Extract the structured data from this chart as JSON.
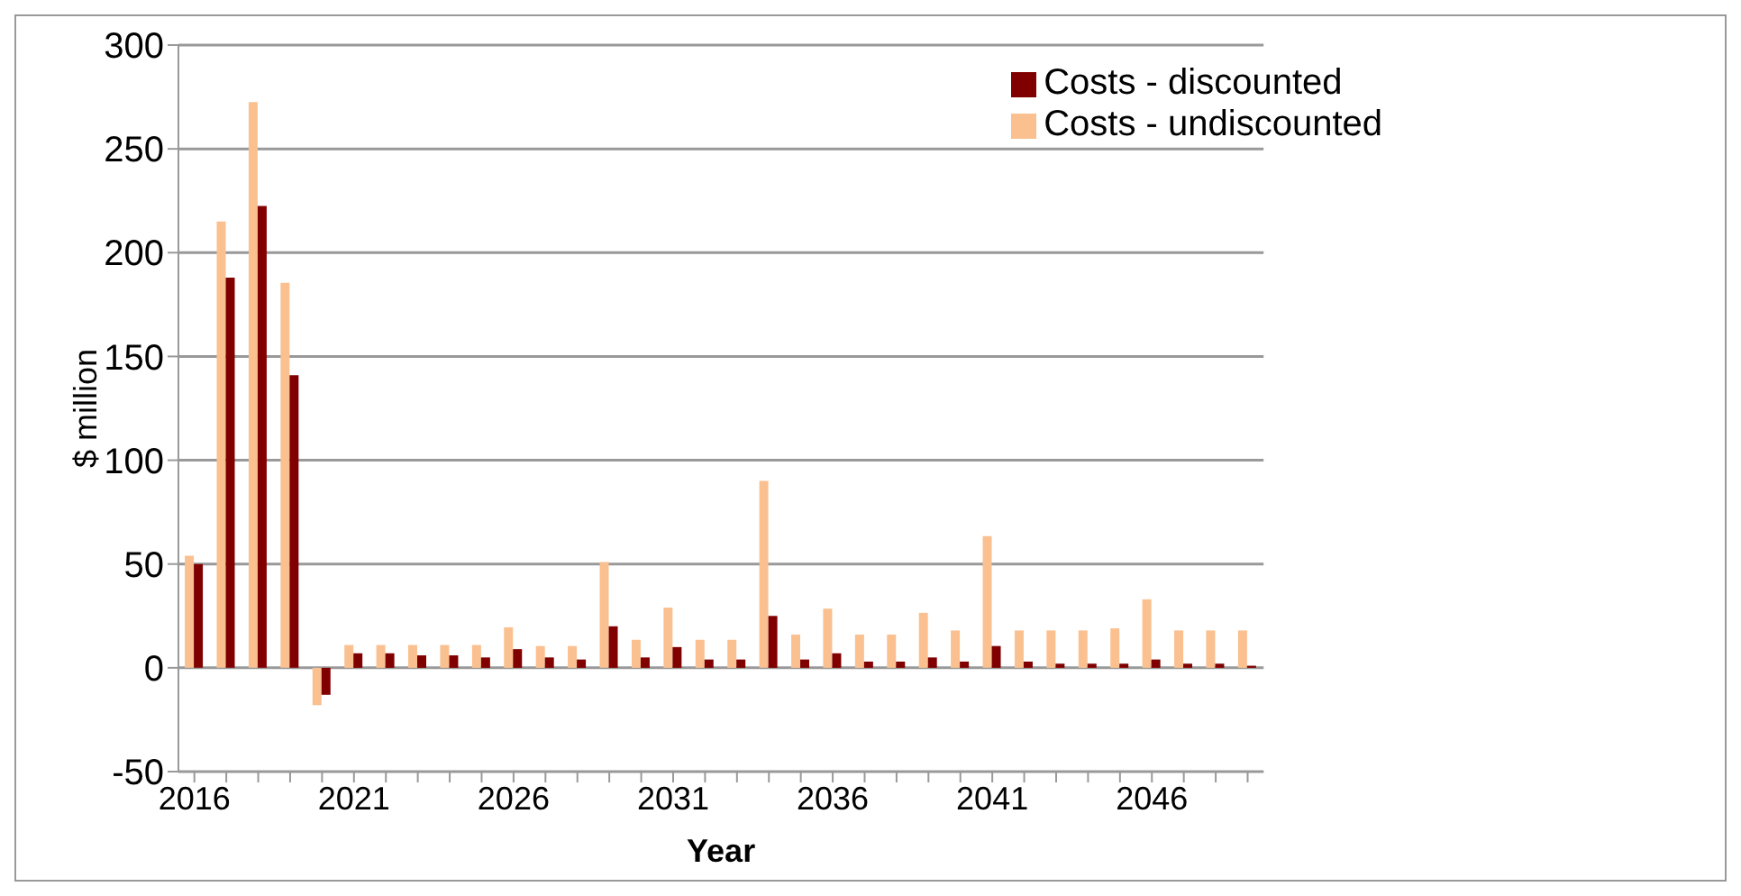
{
  "chart_data": {
    "type": "bar",
    "xlabel": "Year",
    "ylabel": "$ million",
    "categories": [
      "2016",
      null,
      null,
      null,
      null,
      "2021",
      null,
      null,
      null,
      null,
      "2026",
      null,
      null,
      null,
      null,
      "2031",
      null,
      null,
      null,
      null,
      "2036",
      null,
      null,
      null,
      null,
      "2041",
      null,
      null,
      null,
      null,
      "2046",
      null,
      null,
      null
    ],
    "series": [
      {
        "name": "Costs - undiscounted",
        "color": "#fac090",
        "values": [
          54,
          215,
          272.5,
          185.5,
          -18,
          11,
          11,
          11,
          11,
          11,
          19.5,
          10.5,
          10.5,
          51,
          13.5,
          29,
          13.5,
          13.5,
          90,
          16,
          28.5,
          16,
          16,
          26.5,
          18,
          63.5,
          18,
          18,
          18,
          19,
          33,
          18,
          18,
          18
        ]
      },
      {
        "name": "Costs - discounted",
        "color": "#800000",
        "values": [
          50,
          188,
          222.5,
          141,
          -13,
          7,
          7,
          6,
          6,
          5,
          9,
          5,
          4,
          20,
          5,
          10,
          4,
          4,
          25,
          4,
          7,
          3,
          3,
          5,
          3,
          10.5,
          3,
          2,
          2,
          2,
          4,
          2,
          2,
          1
        ]
      }
    ],
    "ylim": [
      -50,
      300
    ],
    "yticks": [
      -50,
      0,
      50,
      100,
      150,
      200,
      250,
      300
    ],
    "grid": "y",
    "legend": "top right"
  }
}
